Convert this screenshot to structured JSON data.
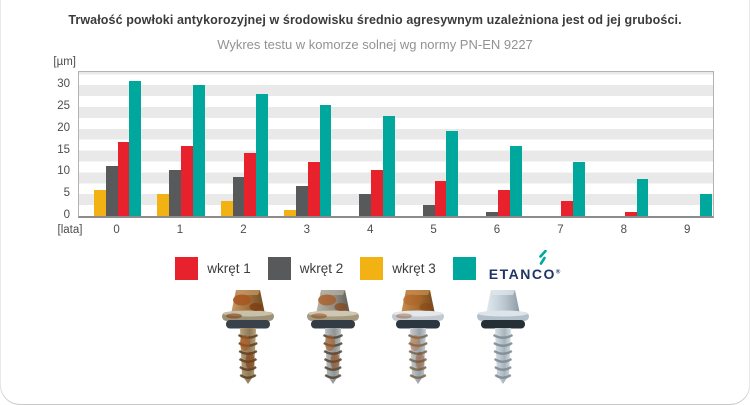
{
  "page": {
    "background": "#ffffff",
    "edge_color": "#c9c9c9"
  },
  "chart_data": {
    "type": "bar",
    "title": "Trwałość powłoki antykorozyjnej w środowisku średnio agresywnym uzależniona jest od jej grubości.",
    "subtitle": "Wykres testu w komorze solnej wg normy PN-EN 9227",
    "y_unit_label": "[µm]",
    "x_unit_label": "[lata]",
    "categories": [
      "0",
      "1",
      "2",
      "3",
      "4",
      "5",
      "6",
      "7",
      "8",
      "9"
    ],
    "y_ticks": [
      0,
      5,
      10,
      15,
      20,
      25,
      30
    ],
    "ylim": [
      0,
      33
    ],
    "grid": "horizontal striped bands every 2.5 µm",
    "stripe_color": "#e9e9e9",
    "legend_position": "bottom",
    "series": [
      {
        "name": "wkręt 1",
        "slug": "wkret-1",
        "color": "#e8222d",
        "values": [
          17,
          16,
          14.5,
          12.5,
          10.5,
          8,
          6,
          3.5,
          1,
          0
        ]
      },
      {
        "name": "wkręt 2",
        "slug": "wkret-2",
        "color": "#58595b",
        "values": [
          11.5,
          10.5,
          9,
          7,
          5,
          2.5,
          1,
          0,
          0,
          0
        ]
      },
      {
        "name": "wkręt 3",
        "slug": "wkret-3",
        "color": "#f2b214",
        "values": [
          6,
          5,
          3.5,
          1.5,
          0,
          0,
          0,
          0,
          0,
          0
        ]
      },
      {
        "name": "ETANCO",
        "slug": "etanco",
        "color": "#00a79c",
        "values": [
          31,
          30,
          28,
          25.5,
          23,
          19.5,
          16,
          12.5,
          8.5,
          5
        ]
      }
    ],
    "bar_draw_order": [
      "wkret-3",
      "wkret-2",
      "wkret-1",
      "etanco"
    ]
  },
  "legend": {
    "items": [
      {
        "label": "wkręt 1",
        "color": "#e8222d",
        "logo": false
      },
      {
        "label": "wkręt 2",
        "color": "#58595b",
        "logo": false
      },
      {
        "label": "wkręt 3",
        "color": "#f2b214",
        "logo": false
      },
      {
        "label": "ETANCO",
        "color": "#00a79c",
        "logo": true
      }
    ],
    "logo": {
      "text": "ETANCO",
      "reg_mark": "®",
      "text_color": "#1e3566",
      "icon_color": "#00a79c"
    }
  },
  "screws": [
    {
      "name": "screw-photo-1",
      "alt": "wkręt 1 – silnie skorodowany",
      "palette": {
        "head_light": "#c89a68",
        "head": "#9c6b38",
        "head_dark": "#6e4a22",
        "washer": "#9d9277",
        "washer_hl": "#c9c0a8",
        "gasket": "#39414a",
        "shank_light": "#b5a07c",
        "shank": "#8f7a58",
        "thread": "#5f4426",
        "rust1": "#a85520",
        "rust2": "#7e3c12",
        "rust_opacity": 0.85
      }
    },
    {
      "name": "screw-photo-2",
      "alt": "wkręt 2 – skorodowany",
      "palette": {
        "head_light": "#b8b4a6",
        "head": "#8f8b80",
        "head_dark": "#5f5c54",
        "washer": "#a59a80",
        "washer_hl": "#cfc7b2",
        "gasket": "#333b44",
        "shank_light": "#b9bdbd",
        "shank": "#8f9596",
        "thread": "#55493a",
        "rust1": "#a85a20",
        "rust2": "#8a4414",
        "rust_opacity": 0.75
      }
    },
    {
      "name": "screw-photo-3",
      "alt": "wkręt 3 – częściowo skorodowany",
      "palette": {
        "head_light": "#c98e4e",
        "head": "#a2672c",
        "head_dark": "#74481e",
        "washer": "#c3c9cf",
        "washer_hl": "#e4e8ec",
        "gasket": "#2c3640",
        "shank_light": "#c6ccd1",
        "shank": "#99a2a9",
        "thread": "#7c6a50",
        "rust1": "#b06228",
        "rust2": "#8a4414",
        "rust_opacity": 0.55
      }
    },
    {
      "name": "screw-photo-4",
      "alt": "wkręt ETANCO – bez korozji",
      "palette": {
        "head_light": "#e2eaf0",
        "head": "#bac6cf",
        "head_dark": "#8d9aa4",
        "washer": "#b4c0c9",
        "washer_hl": "#dde5ea",
        "gasket": "#242f36",
        "shank_light": "#d5dde2",
        "shank": "#a8b4bc",
        "thread": "#7e8c96",
        "rust1": "#b06228",
        "rust2": "#8a4414",
        "rust_opacity": 0
      }
    }
  ]
}
